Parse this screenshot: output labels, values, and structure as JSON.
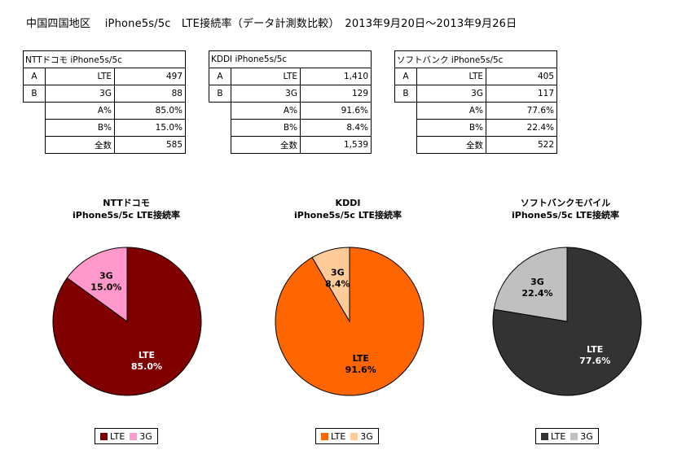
{
  "title": "中国四国地区　 iPhone5s/5c　LTE接続率（データ計測数比較）　2013年9月20日～2013年9月26日",
  "tables": [
    {
      "header": "NTTドコモ iPhone5s/5c",
      "rows": [
        [
          "A",
          "LTE",
          "497"
        ],
        [
          "B",
          "3G",
          "88"
        ]
      ],
      "stats": [
        [
          "A%",
          "85.0%"
        ],
        [
          "B%",
          "15.0%"
        ],
        [
          "全数",
          "585"
        ]
      ]
    },
    {
      "header": "KDDI iPhone5s/5c",
      "rows": [
        [
          "A",
          "LTE",
          "1,410"
        ],
        [
          "B",
          "3G",
          "129"
        ]
      ],
      "stats": [
        [
          "A%",
          "91.6%"
        ],
        [
          "B%",
          "8.4%"
        ],
        [
          "全数",
          "1,539"
        ]
      ]
    },
    {
      "header": "ソフトバンク iPhone5s/5c",
      "rows": [
        [
          "A",
          "LTE",
          "405"
        ],
        [
          "B",
          "3G",
          "117"
        ]
      ],
      "stats": [
        [
          "A%",
          "77.6%"
        ],
        [
          "B%",
          "22.4%"
        ],
        [
          "全数",
          "522"
        ]
      ]
    }
  ],
  "chart_data": [
    {
      "type": "pie",
      "title": "NTTドコモ",
      "subtitle": "iPhone5s/5c LTE接続率",
      "categories": [
        "LTE",
        "3G"
      ],
      "values": [
        85.0,
        15.0
      ],
      "labels": [
        "85.0%",
        "15.0%"
      ],
      "colors": [
        "#800000",
        "#ff99cc"
      ],
      "label_colors": [
        "#ffffff",
        "#000000"
      ],
      "legend_position": "bottom"
    },
    {
      "type": "pie",
      "title": "KDDI",
      "subtitle": "iPhone5s/5c LTE接続率",
      "categories": [
        "LTE",
        "3G"
      ],
      "values": [
        91.6,
        8.4
      ],
      "labels": [
        "91.6%",
        "8.4%"
      ],
      "colors": [
        "#ff6600",
        "#ffcc99"
      ],
      "label_colors": [
        "#000000",
        "#000000"
      ],
      "legend_position": "bottom"
    },
    {
      "type": "pie",
      "title": "ソフトバンクモバイル",
      "subtitle": "iPhone5s/5c LTE接続率",
      "categories": [
        "LTE",
        "3G"
      ],
      "values": [
        77.6,
        22.4
      ],
      "labels": [
        "77.6%",
        "22.4%"
      ],
      "colors": [
        "#333333",
        "#c0c0c0"
      ],
      "label_colors": [
        "#ffffff",
        "#000000"
      ],
      "legend_position": "bottom"
    }
  ]
}
